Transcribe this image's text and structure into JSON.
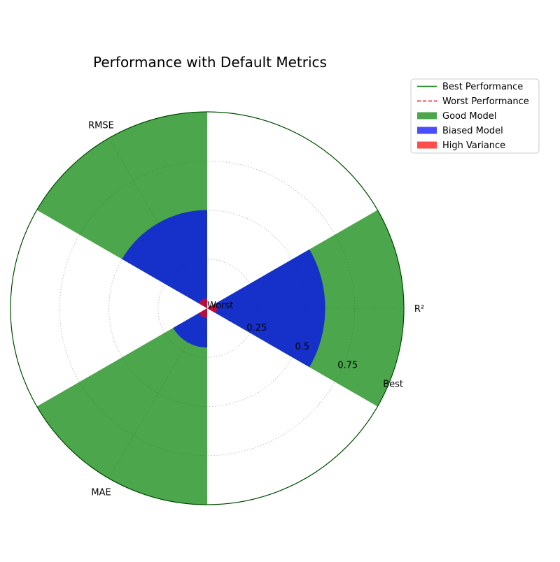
{
  "chart_data": {
    "type": "polar-bar",
    "title": "Performance with Default Metrics",
    "axes": [
      "R²",
      "RMSE",
      "MAE"
    ],
    "radial_range": [
      0,
      1
    ],
    "radial_ticks": [
      0.25,
      0.5,
      0.75
    ],
    "radial_tick_labels": [
      "0.25",
      "0.5",
      "0.75"
    ],
    "center_label": "Worst",
    "outer_label": "Best",
    "grid": true,
    "legend_position": "upper-right-outside",
    "series": [
      {
        "name": "Good Model",
        "color": "#008000",
        "opacity": 0.7,
        "values": [
          1.0,
          1.0,
          1.0
        ]
      },
      {
        "name": "Biased Model",
        "color": "#0000ff",
        "opacity": 0.7,
        "values": [
          0.6,
          0.5,
          0.2
        ]
      },
      {
        "name": "High Variance",
        "color": "#ff0000",
        "opacity": 0.7,
        "values": [
          0.05,
          0.05,
          0.05
        ]
      }
    ],
    "reference_lines": [
      {
        "name": "Best Performance",
        "color": "#008000",
        "style": "solid",
        "value": 1.0
      },
      {
        "name": "Worst Performance",
        "color": "#ff0000",
        "style": "dashed",
        "value": 0.0
      }
    ]
  }
}
